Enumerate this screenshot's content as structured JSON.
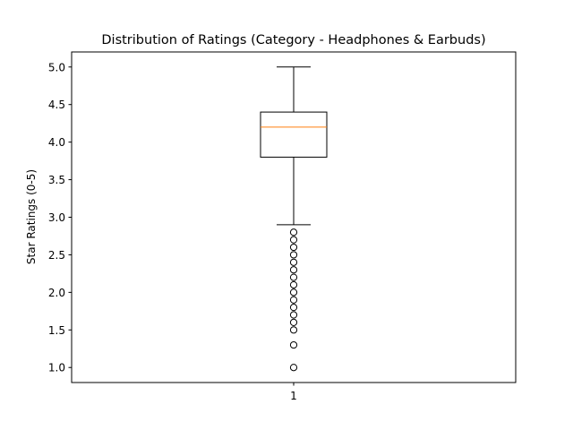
{
  "chart_data": {
    "type": "box",
    "title": "Distribution of Ratings (Category - Headphones & Earbuds)",
    "xlabel": "",
    "ylabel": "Star Ratings (0-5)",
    "categories": [
      "1"
    ],
    "ylim": [
      0.8,
      5.2
    ],
    "yticks": [
      1.0,
      1.5,
      2.0,
      2.5,
      3.0,
      3.5,
      4.0,
      4.5,
      5.0
    ],
    "ytick_labels": [
      "1.0",
      "1.5",
      "2.0",
      "2.5",
      "3.0",
      "3.5",
      "4.0",
      "4.5",
      "5.0"
    ],
    "grid": false,
    "box": {
      "whisker_low": 2.9,
      "q1": 3.8,
      "median": 4.2,
      "q3": 4.4,
      "whisker_high": 5.0
    },
    "outliers": [
      2.8,
      2.7,
      2.6,
      2.5,
      2.4,
      2.3,
      2.2,
      2.1,
      2.0,
      1.9,
      1.8,
      1.7,
      1.6,
      1.5,
      1.3,
      1.0
    ],
    "colors": {
      "box": "#000000",
      "median": "#ff7f0e",
      "outlier": "#000000"
    }
  }
}
